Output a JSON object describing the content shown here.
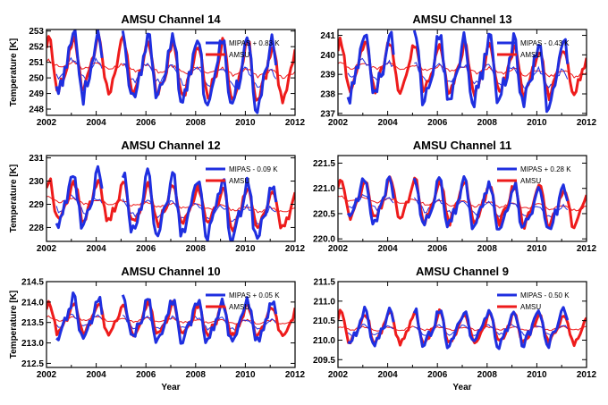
{
  "colors": {
    "mipas": "#1f2fe0",
    "amsu": "#ee1b1b",
    "frame": "#000000"
  },
  "chart_data": [
    {
      "type": "line",
      "title": "AMSU Channel 14",
      "ylabel": "Temperature [K]",
      "xlabel": "",
      "xlim": [
        2002,
        2012
      ],
      "ylim": [
        247.6,
        253.1
      ],
      "xticks": [
        "2002",
        "2004",
        "2006",
        "2008",
        "2010",
        "2012"
      ],
      "yticks": [
        "248",
        "249",
        "250",
        "251",
        "252",
        "253"
      ],
      "legend": [
        {
          "name": "MIPAS + 0.83 K"
        },
        {
          "name": "AMSU"
        }
      ],
      "mean": 250.9,
      "amsu_amp": 1.6,
      "mipas_amp": 1.9,
      "trend": -0.07,
      "mipas_start": 2002.4,
      "mipas_end": 2011.3,
      "gaps": [
        [
          2004.3,
          2005.0
        ]
      ]
    },
    {
      "type": "line",
      "title": "AMSU Channel 13",
      "ylabel": "",
      "xlabel": "",
      "xlim": [
        2002,
        2012
      ],
      "ylim": [
        236.9,
        241.3
      ],
      "xticks": [
        "2002",
        "2004",
        "2006",
        "2008",
        "2010",
        "2012"
      ],
      "yticks": [
        "237",
        "238",
        "239",
        "240",
        "241"
      ],
      "legend": [
        {
          "name": "MIPAS - 0.43 K"
        },
        {
          "name": "AMSU"
        }
      ],
      "mean": 239.5,
      "amsu_amp": 1.1,
      "mipas_amp": 1.5,
      "trend": -0.05,
      "mipas_start": 2002.4,
      "mipas_end": 2011.3,
      "gaps": [
        [
          2004.3,
          2005.0
        ]
      ]
    },
    {
      "type": "line",
      "title": "AMSU Channel 12",
      "ylabel": "Temperature [K]",
      "xlabel": "",
      "xlim": [
        2002,
        2012
      ],
      "ylim": [
        227.4,
        231.1
      ],
      "xticks": [
        "2002",
        "2004",
        "2006",
        "2008",
        "2010",
        "2012"
      ],
      "yticks": [
        "228",
        "229",
        "230",
        "231"
      ],
      "legend": [
        {
          "name": "MIPAS - 0.09 K"
        },
        {
          "name": "AMSU"
        }
      ],
      "mean": 229.2,
      "amsu_amp": 0.8,
      "mipas_amp": 1.1,
      "trend": -0.05,
      "mipas_start": 2002.4,
      "mipas_end": 2011.3,
      "gaps": [
        [
          2004.3,
          2005.0
        ]
      ]
    },
    {
      "type": "line",
      "title": "AMSU Channel 11",
      "ylabel": "",
      "xlabel": "",
      "xlim": [
        2002,
        2012
      ],
      "ylim": [
        219.95,
        221.65
      ],
      "xticks": [
        "2002",
        "2004",
        "2006",
        "2008",
        "2010",
        "2012"
      ],
      "yticks": [
        "220.0",
        "220.5",
        "221.0",
        "221.5"
      ],
      "legend": [
        {
          "name": "MIPAS + 0.28 K"
        },
        {
          "name": "AMSU"
        }
      ],
      "mean": 220.8,
      "amsu_amp": 0.35,
      "mipas_amp": 0.4,
      "trend": -0.02,
      "mipas_start": 2002.4,
      "mipas_end": 2011.3,
      "gaps": [
        [
          2004.3,
          2005.0
        ]
      ]
    },
    {
      "type": "line",
      "title": "AMSU Channel 10",
      "ylabel": "Temperature [K]",
      "xlabel": "Year",
      "xlim": [
        2002,
        2012
      ],
      "ylim": [
        212.4,
        214.5
      ],
      "xticks": [
        "2002",
        "2004",
        "2006",
        "2008",
        "2010",
        "2012"
      ],
      "yticks": [
        "212.5",
        "213.0",
        "213.5",
        "214.0",
        "214.5"
      ],
      "legend": [
        {
          "name": "MIPAS + 0.05 K"
        },
        {
          "name": "AMSU"
        }
      ],
      "mean": 213.6,
      "amsu_amp": 0.35,
      "mipas_amp": 0.45,
      "trend": -0.01,
      "mipas_start": 2002.4,
      "mipas_end": 2011.3,
      "gaps": [
        [
          2004.3,
          2005.0
        ]
      ]
    },
    {
      "type": "line",
      "title": "AMSU Channel  9",
      "ylabel": "",
      "xlabel": "Year",
      "xlim": [
        2002,
        2012
      ],
      "ylim": [
        209.3,
        211.5
      ],
      "xticks": [
        "2002",
        "2004",
        "2006",
        "2008",
        "2010",
        "2012"
      ],
      "yticks": [
        "209.5",
        "210.0",
        "210.5",
        "211.0",
        "211.5"
      ],
      "legend": [
        {
          "name": "MIPAS - 0.50 K"
        },
        {
          "name": "AMSU"
        }
      ],
      "mean": 210.3,
      "amsu_amp": 0.35,
      "mipas_amp": 0.4,
      "trend": 0.0,
      "mipas_start": 2002.4,
      "mipas_end": 2011.3,
      "gaps": [
        [
          2004.3,
          2005.0
        ]
      ]
    }
  ]
}
